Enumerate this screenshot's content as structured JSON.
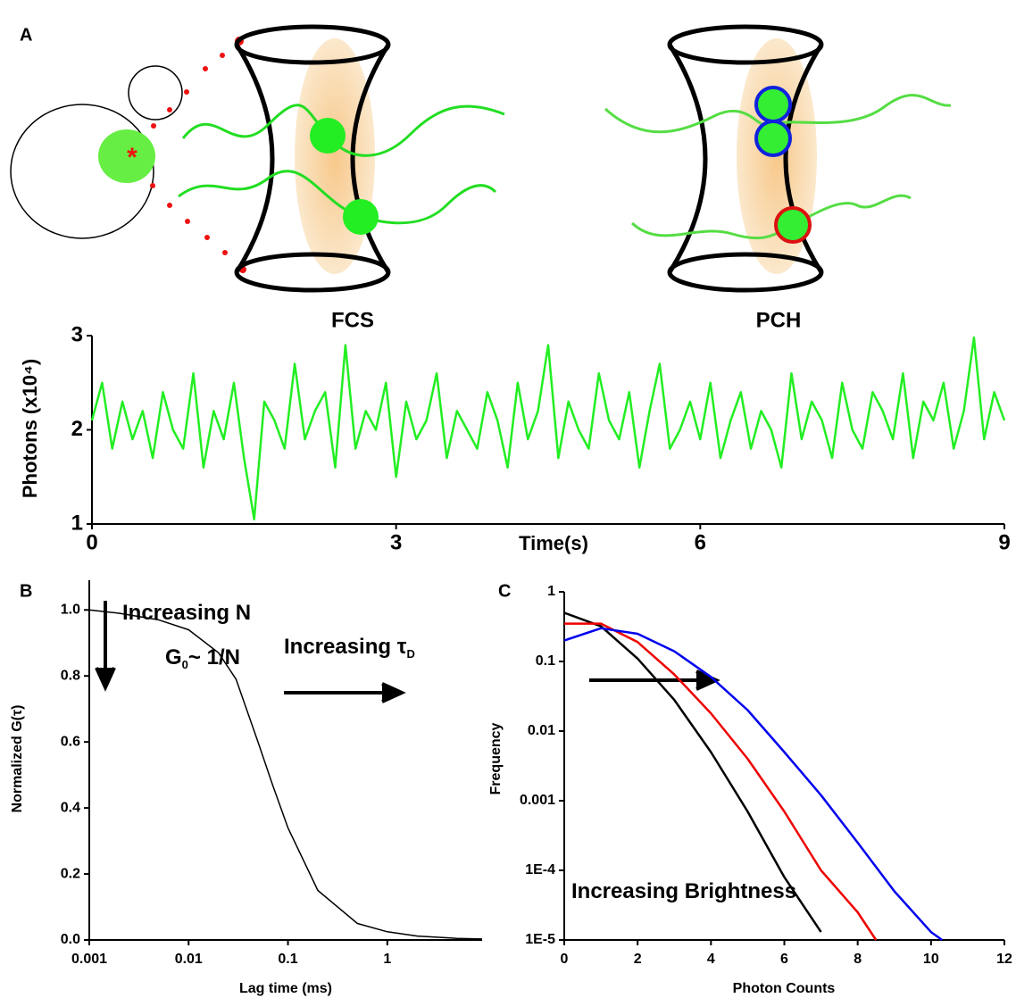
{
  "figure": {
    "panel_labels": [
      "A",
      "B",
      "C"
    ],
    "diagram_labels": [
      "FCS",
      "PCH"
    ],
    "marker": "*"
  },
  "chart_data": [
    {
      "type": "line",
      "y_label": "Photons (x10⁴)",
      "x_label": "Time(s)",
      "color": "#22ee22",
      "xlim": [
        0,
        9
      ],
      "ylim": [
        1,
        3
      ],
      "xticks": [
        0,
        3,
        6,
        9
      ],
      "yticks": [
        1,
        2,
        3
      ],
      "x": [
        0,
        0.1,
        0.2,
        0.3,
        0.4,
        0.5,
        0.6,
        0.7,
        0.8,
        0.9,
        1,
        1.1,
        1.2,
        1.3,
        1.4,
        1.5,
        1.6,
        1.7,
        1.8,
        1.9,
        2,
        2.1,
        2.2,
        2.3,
        2.4,
        2.5,
        2.6,
        2.7,
        2.8,
        2.9,
        3,
        3.1,
        3.2,
        3.3,
        3.4,
        3.5,
        3.6,
        3.7,
        3.8,
        3.9,
        4,
        4.1,
        4.2,
        4.3,
        4.4,
        4.5,
        4.6,
        4.7,
        4.8,
        4.9,
        5,
        5.1,
        5.2,
        5.3,
        5.4,
        5.5,
        5.6,
        5.7,
        5.8,
        5.9,
        6,
        6.1,
        6.2,
        6.3,
        6.4,
        6.5,
        6.6,
        6.7,
        6.8,
        6.9,
        7,
        7.1,
        7.2,
        7.3,
        7.4,
        7.5,
        7.6,
        7.7,
        7.8,
        7.9,
        8,
        8.1,
        8.2,
        8.3,
        8.4,
        8.5,
        8.6,
        8.7,
        8.8,
        8.9,
        9
      ],
      "values": [
        2.1,
        2.5,
        1.8,
        2.3,
        1.9,
        2.2,
        1.7,
        2.4,
        2.0,
        1.8,
        2.6,
        1.6,
        2.2,
        1.9,
        2.5,
        1.7,
        1.05,
        2.3,
        2.1,
        1.8,
        2.7,
        1.9,
        2.2,
        2.4,
        1.6,
        2.9,
        1.8,
        2.2,
        2.0,
        2.5,
        1.5,
        2.3,
        1.9,
        2.1,
        2.6,
        1.7,
        2.2,
        2.0,
        1.8,
        2.4,
        2.1,
        1.6,
        2.5,
        1.9,
        2.2,
        2.9,
        1.7,
        2.3,
        2.0,
        1.8,
        2.6,
        2.1,
        1.9,
        2.4,
        1.6,
        2.2,
        2.7,
        1.8,
        2.0,
        2.3,
        1.9,
        2.5,
        1.7,
        2.1,
        2.4,
        1.8,
        2.2,
        2.0,
        1.6,
        2.6,
        1.9,
        2.3,
        2.1,
        1.7,
        2.5,
        2.0,
        1.8,
        2.4,
        2.2,
        1.9,
        2.6,
        1.7,
        2.3,
        2.1,
        2.5,
        1.8,
        2.2,
        2.98,
        1.9,
        2.4,
        2.1
      ]
    },
    {
      "type": "line",
      "x_scale": "log",
      "y_label": "Normalized G(τ)",
      "x_label": "Lag time (ms)",
      "color": "#000000",
      "xlim": [
        0.001,
        9
      ],
      "ylim": [
        0,
        1.09
      ],
      "xticks": [
        0.001,
        0.01,
        0.1,
        1
      ],
      "yticks": [
        {
          "value": 0,
          "label": "0.0"
        },
        0.2,
        0.4,
        0.6,
        0.8,
        {
          "value": 1,
          "label": "1.0"
        }
      ],
      "x": [
        0.001,
        0.002,
        0.005,
        0.01,
        0.02,
        0.03,
        0.05,
        0.07,
        0.1,
        0.2,
        0.5,
        1,
        2,
        5,
        9
      ],
      "values": [
        1.0,
        0.99,
        0.97,
        0.94,
        0.87,
        0.79,
        0.6,
        0.47,
        0.34,
        0.15,
        0.05,
        0.025,
        0.012,
        0.005,
        0.003
      ],
      "annotations": [
        {
          "text": "Increasing N"
        },
        {
          "text": "G",
          "sub": "0",
          "tail": "~ 1/N"
        },
        {
          "text": "Increasing τ",
          "sub": "D"
        }
      ]
    },
    {
      "type": "line",
      "y_scale": "log",
      "y_label": "Frequency",
      "x_label": "Photon Counts",
      "xlim": [
        0,
        12
      ],
      "ylim": [
        1e-05,
        1
      ],
      "xticks": [
        0,
        2,
        4,
        6,
        8,
        10,
        12
      ],
      "yticks": [
        {
          "value": 1e-05,
          "label": "1E-5"
        },
        {
          "value": 0.0001,
          "label": "1E-4"
        },
        0.001,
        0.01,
        0.1,
        1
      ],
      "series": [
        {
          "color": "#000000",
          "x": [
            0,
            1,
            2,
            3,
            4,
            5,
            6,
            7
          ],
          "values": [
            0.5,
            0.32,
            0.11,
            0.028,
            0.005,
            0.0007,
            8e-05,
            1.3e-05
          ]
        },
        {
          "color": "#ee0000",
          "x": [
            0,
            1,
            2,
            3,
            4,
            5,
            6,
            7,
            8,
            8.5
          ],
          "values": [
            0.35,
            0.35,
            0.19,
            0.065,
            0.018,
            0.004,
            0.0007,
            0.0001,
            2.5e-05,
            1e-05
          ]
        },
        {
          "color": "#0000ee",
          "x": [
            0,
            1,
            2,
            3,
            4,
            5,
            6,
            7,
            8,
            9,
            10,
            10.3
          ],
          "values": [
            0.2,
            0.3,
            0.25,
            0.14,
            0.06,
            0.02,
            0.005,
            0.0012,
            0.00025,
            5e-05,
            1.3e-05,
            1e-05
          ]
        }
      ],
      "annotations": [
        {
          "text": "Increasing Brightness"
        }
      ]
    }
  ]
}
